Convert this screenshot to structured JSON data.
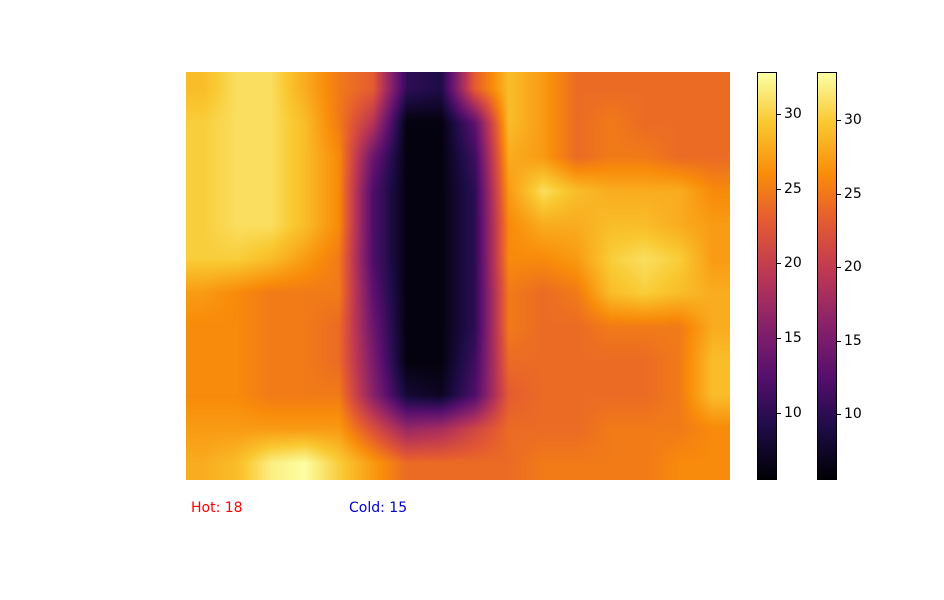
{
  "chart_data": {
    "type": "heatmap",
    "colormap": "inferno",
    "value_range": [
      5.5,
      33.0
    ],
    "rows": 12,
    "cols": 16,
    "grid": [
      [
        29,
        31,
        31,
        28,
        25,
        23,
        10,
        9,
        23,
        29,
        27,
        24,
        24,
        24,
        24,
        24
      ],
      [
        30,
        31,
        31,
        29,
        25,
        19,
        6,
        6,
        13,
        29,
        27,
        24,
        25,
        24,
        24,
        24
      ],
      [
        30,
        31,
        31,
        29,
        26,
        14,
        6,
        6,
        11,
        28,
        27,
        24,
        25,
        25,
        24,
        24
      ],
      [
        30,
        31,
        31,
        29,
        26,
        12,
        6,
        6,
        10,
        27,
        31,
        29,
        28,
        28,
        28,
        26
      ],
      [
        30,
        31,
        31,
        29,
        26,
        12,
        6,
        6,
        10,
        26,
        28,
        28,
        29,
        29,
        28,
        27
      ],
      [
        30,
        30,
        29,
        27,
        25,
        12,
        6,
        6,
        10,
        26,
        26,
        27,
        30,
        31,
        30,
        27
      ],
      [
        27,
        26,
        25,
        25,
        25,
        13,
        6,
        6,
        10,
        25,
        24,
        25,
        29,
        30,
        29,
        28
      ],
      [
        26,
        26,
        25,
        25,
        24,
        14,
        6,
        6,
        10,
        25,
        24,
        24,
        25,
        25,
        25,
        28
      ],
      [
        26,
        26,
        25,
        25,
        24,
        15,
        6,
        6,
        11,
        24,
        24,
        24,
        24,
        24,
        25,
        29
      ],
      [
        26,
        26,
        25,
        25,
        25,
        16,
        8,
        7,
        12,
        23,
        24,
        24,
        24,
        24,
        25,
        29
      ],
      [
        27,
        27,
        27,
        27,
        27,
        22,
        17,
        18,
        21,
        24,
        24,
        24,
        25,
        25,
        25,
        26
      ],
      [
        28,
        29,
        32,
        33,
        30,
        27,
        24,
        24,
        24,
        24,
        25,
        25,
        25,
        25,
        26,
        26
      ]
    ]
  },
  "colorbars": [
    {
      "ticks": [
        10,
        15,
        20,
        25,
        30
      ],
      "range": [
        5.5,
        32.8
      ]
    },
    {
      "ticks": [
        10,
        15,
        20,
        25,
        30
      ],
      "range": [
        5.5,
        33.3
      ]
    }
  ],
  "annotations": {
    "hot": {
      "label": "Hot: 18",
      "color": "#ff0000"
    },
    "cold": {
      "label": "Cold: 15",
      "color": "#0000cc"
    }
  }
}
